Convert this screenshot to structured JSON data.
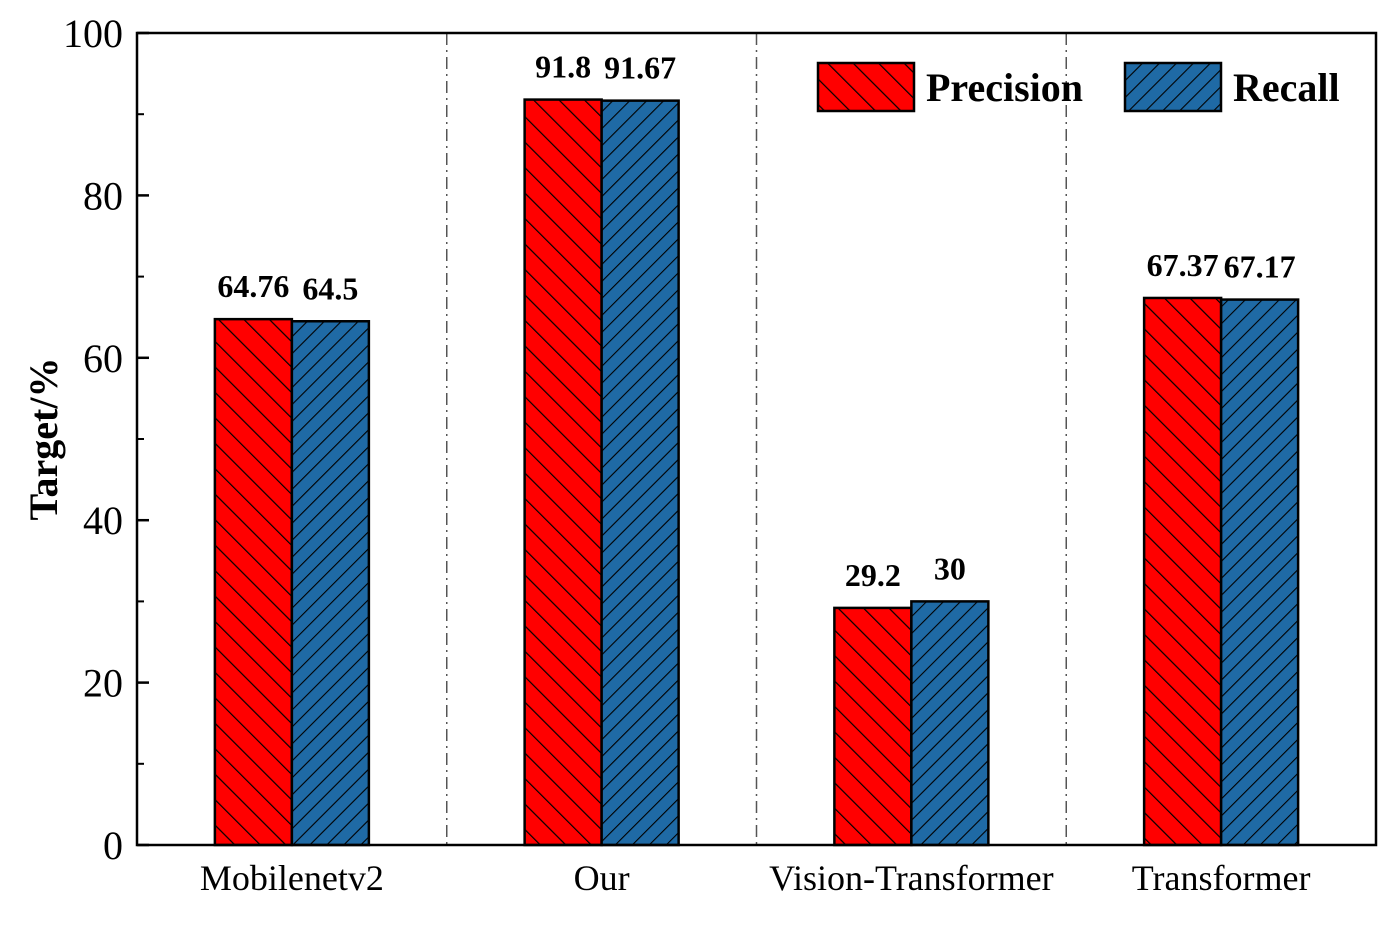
{
  "colors": {
    "precision": "#ff0000",
    "recall": "#1f6aa5",
    "hatch": "#000000",
    "axis": "#000000",
    "separator": "#555555"
  },
  "chart_data": {
    "type": "bar",
    "title": "",
    "xlabel": "",
    "ylabel": "Target/%",
    "ylim": [
      0,
      100
    ],
    "yticks": [
      0,
      20,
      40,
      60,
      80,
      100
    ],
    "categories": [
      "Mobilenetv2",
      "Our",
      "Vision-Transformer",
      "Transformer"
    ],
    "series": [
      {
        "name": "Precision",
        "values": [
          64.76,
          91.8,
          29.2,
          67.37
        ],
        "labels": [
          "64.76",
          "91.8",
          "29.2",
          "67.37"
        ]
      },
      {
        "name": "Recall",
        "values": [
          64.5,
          91.67,
          30,
          67.17
        ],
        "labels": [
          "64.5",
          "91.67",
          "30",
          "67.17"
        ]
      }
    ],
    "legend": {
      "placement": "top-right"
    },
    "grid": false,
    "separators": "dash-dot between categories"
  }
}
